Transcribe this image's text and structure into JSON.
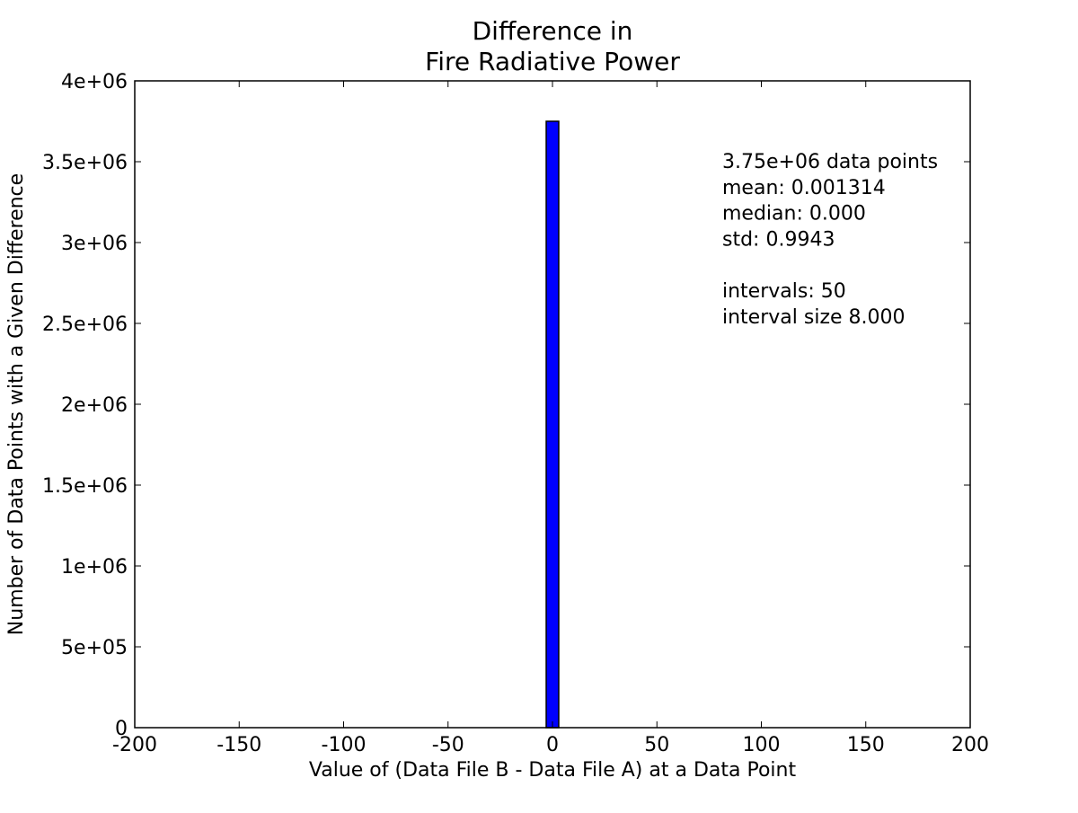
{
  "chart_data": {
    "type": "bar",
    "title_lines": [
      "Difference in",
      "Fire Radiative Power"
    ],
    "xlabel": "Value of (Data File B - Data File A) at a Data Point",
    "ylabel": "Number of Data Points with a Given Difference",
    "xlim": [
      -200,
      200
    ],
    "ylim": [
      0,
      4000000
    ],
    "x_ticks": [
      -200,
      -150,
      -100,
      -50,
      0,
      50,
      100,
      150,
      200
    ],
    "x_tick_labels": [
      "-200",
      "-150",
      "-100",
      "-50",
      "0",
      "50",
      "100",
      "150",
      "200"
    ],
    "y_ticks": [
      0,
      500000,
      1000000,
      1500000,
      2000000,
      2500000,
      3000000,
      3500000,
      4000000
    ],
    "y_tick_labels": [
      "0",
      "5e+05",
      "1e+06",
      "1.5e+06",
      "2e+06",
      "2.5e+06",
      "3e+06",
      "3.5e+06",
      "4e+06"
    ],
    "bars": [
      {
        "x_start": -3,
        "x_end": 3,
        "value": 3750000
      }
    ],
    "bar_color": "#0000ff",
    "grid": false,
    "stats_lines": [
      "3.75e+06 data points",
      "mean: 0.001314",
      "median: 0.000",
      "std: 0.9943",
      "",
      "intervals: 50",
      "interval size 8.000"
    ]
  }
}
